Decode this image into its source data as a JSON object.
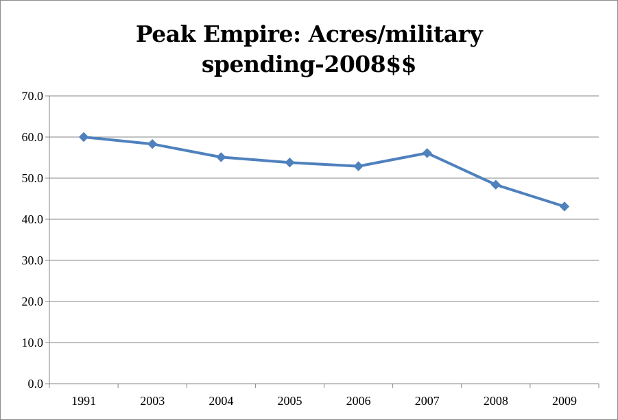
{
  "chart_data": {
    "type": "line",
    "title_lines": [
      "Peak Empire: Acres/military",
      "spending-2008$$"
    ],
    "title": "Peak Empire: Acres/military spending-2008$$",
    "xlabel": "",
    "ylabel": "",
    "categories": [
      "1991",
      "2003",
      "2004",
      "2005",
      "2006",
      "2007",
      "2008",
      "2009"
    ],
    "series": [
      {
        "name": "Acres/military spending",
        "values": [
          60.0,
          58.3,
          55.1,
          53.8,
          52.9,
          56.1,
          48.4,
          43.1
        ]
      }
    ],
    "ylim": [
      0,
      70
    ],
    "yticks": [
      0,
      10,
      20,
      30,
      40,
      50,
      60,
      70
    ],
    "ytick_labels": [
      "0.0",
      "10.0",
      "20.0",
      "30.0",
      "40.0",
      "50.0",
      "60.0",
      "70.0"
    ],
    "grid": true,
    "legend": "none",
    "colors": {
      "line": "#4f81bd",
      "marker": "#4f81bd",
      "grid": "#868686",
      "axis": "#868686"
    }
  }
}
